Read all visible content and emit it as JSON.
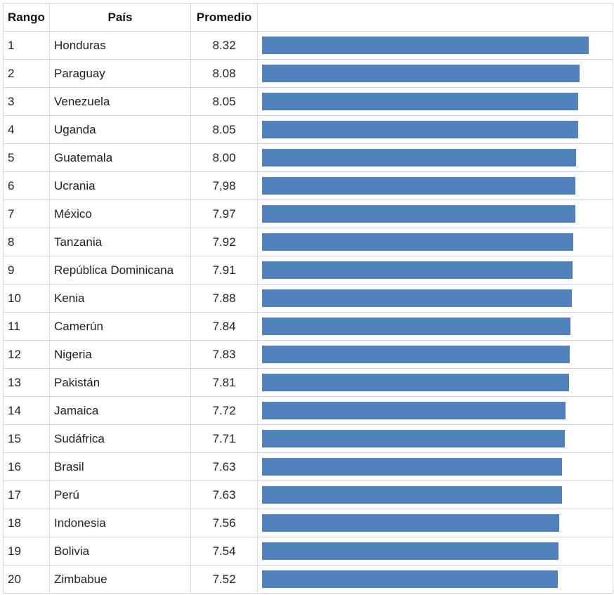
{
  "chart_data": {
    "type": "table",
    "columns": [
      "Rango",
      "País",
      "Promedio",
      ""
    ],
    "bar_color": "#4f81bd",
    "rows": [
      {
        "rank": "1",
        "country": "Honduras",
        "average_label": "8.32",
        "value": 8.32
      },
      {
        "rank": "2",
        "country": "Paraguay",
        "average_label": "8.08",
        "value": 8.08
      },
      {
        "rank": "3",
        "country": "Venezuela",
        "average_label": "8.05",
        "value": 8.05
      },
      {
        "rank": "4",
        "country": "Uganda",
        "average_label": "8.05",
        "value": 8.05
      },
      {
        "rank": "5",
        "country": "Guatemala",
        "average_label": "8.00",
        "value": 8.0
      },
      {
        "rank": "6",
        "country": "Ucrania",
        "average_label": "7,98",
        "value": 7.98
      },
      {
        "rank": "7",
        "country": "México",
        "average_label": "7.97",
        "value": 7.97
      },
      {
        "rank": "8",
        "country": "Tanzania",
        "average_label": "7.92",
        "value": 7.92
      },
      {
        "rank": "9",
        "country": "República Dominicana",
        "average_label": "7.91",
        "value": 7.91
      },
      {
        "rank": "10",
        "country": "Kenia",
        "average_label": "7.88",
        "value": 7.88
      },
      {
        "rank": "11",
        "country": "Camerún",
        "average_label": "7.84",
        "value": 7.84
      },
      {
        "rank": "12",
        "country": "Nigeria",
        "average_label": "7.83",
        "value": 7.83
      },
      {
        "rank": "13",
        "country": "Pakistán",
        "average_label": "7.81",
        "value": 7.81
      },
      {
        "rank": "14",
        "country": "Jamaica",
        "average_label": "7.72",
        "value": 7.72
      },
      {
        "rank": "15",
        "country": "Sudáfrica",
        "average_label": "7.71",
        "value": 7.71
      },
      {
        "rank": "16",
        "country": "Brasil",
        "average_label": "7.63",
        "value": 7.63
      },
      {
        "rank": "17",
        "country": "Perú",
        "average_label": "7.63",
        "value": 7.63
      },
      {
        "rank": "18",
        "country": "Indonesia",
        "average_label": "7.56",
        "value": 7.56
      },
      {
        "rank": "19",
        "country": "Bolivia",
        "average_label": "7.54",
        "value": 7.54
      },
      {
        "rank": "20",
        "country": "Zimbabue",
        "average_label": "7.52",
        "value": 7.52
      }
    ]
  }
}
